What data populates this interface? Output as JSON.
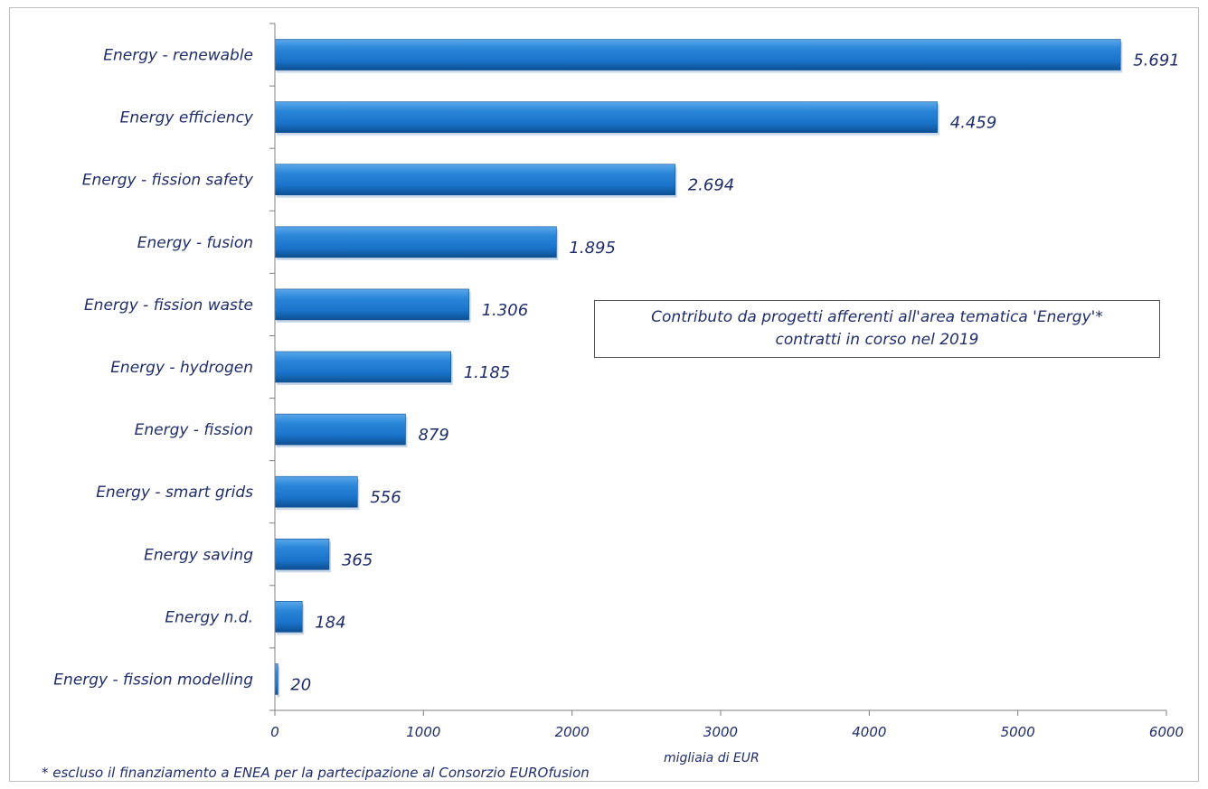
{
  "chart_data": {
    "type": "bar",
    "orientation": "horizontal",
    "categories": [
      "Energy -  renewable",
      "Energy efficiency",
      "Energy - fission safety",
      "Energy - fusion",
      "Energy - fission waste",
      "Energy - hydrogen",
      "Energy - fission",
      "Energy - smart grids",
      "Energy saving",
      "Energy n.d.",
      "Energy - fission modelling"
    ],
    "values": [
      5691,
      4459,
      2694,
      1895,
      1306,
      1185,
      879,
      556,
      365,
      184,
      20
    ],
    "value_labels": [
      "5.691",
      "4.459",
      "2.694",
      "1.895",
      "1.306",
      "1.185",
      "879",
      "556",
      "365",
      "184",
      "20"
    ],
    "xlim": [
      0,
      6000
    ],
    "xticks": [
      0,
      1000,
      2000,
      3000,
      4000,
      5000,
      6000
    ],
    "xlabel": "migliaia di EUR",
    "ylabel": "",
    "grid": false,
    "colors": {
      "bar": "#1a73c9",
      "bar_light": "#5aa7ea",
      "bar_dark": "#0d4f92",
      "text": "#1f2d6b",
      "axis": "#7f7f7f"
    },
    "annotation": {
      "line1": "Contributo da progetti afferenti all'area tematica 'Energy'*",
      "line2": "contratti in corso nel 2019"
    },
    "footnote": "* escluso il finanziamento a ENEA per la partecipazione al Consorzio EUROfusion"
  }
}
